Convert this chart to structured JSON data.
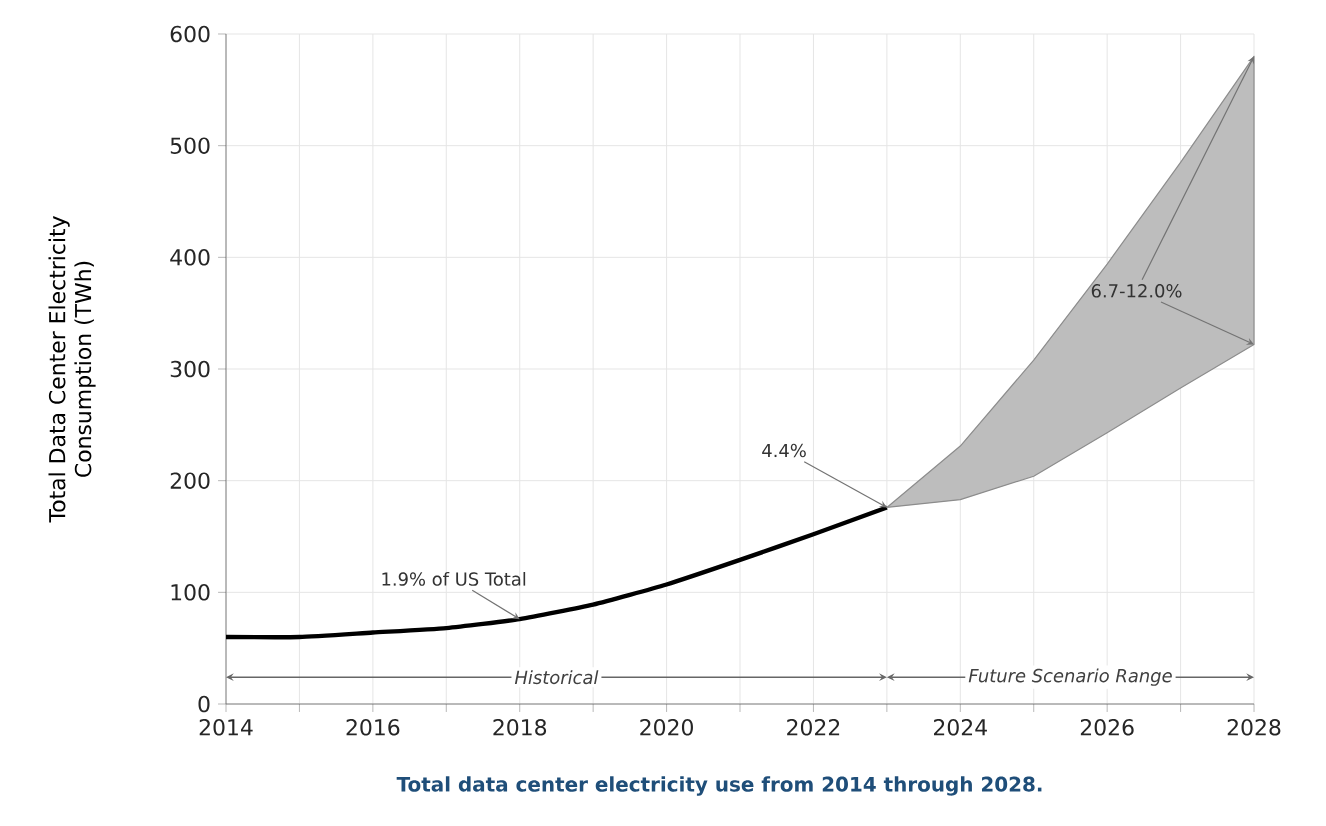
{
  "chart_data": {
    "type": "line",
    "ylabel": "Total Data Center Electricity\nConsumption (TWh)",
    "series": [
      {
        "color": "#000000",
        "x": [
          2014,
          2015,
          2016,
          2017,
          2018,
          2019,
          2020,
          2021,
          2022,
          2023
        ],
        "values": [
          60,
          60,
          64,
          68,
          76,
          89,
          107,
          129,
          152,
          176
        ]
      },
      {
        "type": "line",
        "color": "#bdbdbd",
        "x": [
          2023,
          2024,
          2025,
          2026,
          2027,
          2028
        ],
        "values": [
          null,
          null,
          null,
          null,
          null,
          null
        ],
        "lower": [
          176,
          183,
          204,
          243,
          283,
          322
        ],
        "upper": [
          176,
          231,
          308,
          394,
          485,
          580
        ]
      }
    ],
    "xlim": [
      2014,
      2028
    ],
    "ylim": [
      0,
      600
    ],
    "xticks": [
      2014,
      {
        "value": 2015,
        "label": null
      },
      2016,
      {
        "value": 2017,
        "label": null
      },
      2018,
      {
        "value": 2019,
        "label": null
      },
      2020,
      {
        "value": 2021,
        "label": null
      },
      2022,
      {
        "value": 2023,
        "label": null
      },
      2024,
      {
        "value": 2025,
        "label": null
      },
      2026,
      {
        "value": 2027,
        "label": null
      },
      2028
    ],
    "yticks": [
      0,
      100,
      200,
      300,
      400,
      500,
      600
    ],
    "grid": true,
    "annotations": [
      "Historical",
      "Future Scenario Range",
      {
        "text": "1.9% of US Total",
        "x": 2018,
        "y": 76
      },
      {
        "text": "4.4%",
        "x": 2023,
        "y": 176
      },
      {
        "text": "6.7-12.0%",
        "x": 2028,
        "y": 580
      },
      "Total data center electricity use from 2014 through 2028."
    ]
  }
}
